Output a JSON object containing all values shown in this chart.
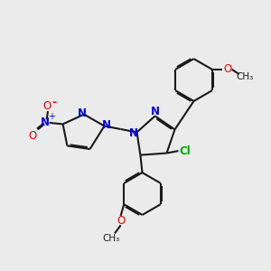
{
  "bg_color": "#ebebeb",
  "bond_color": "#1a1a1a",
  "N_color": "#0000ee",
  "O_color": "#ee0000",
  "Cl_color": "#00aa00",
  "bond_width": 1.5,
  "figsize": [
    3.0,
    3.0
  ],
  "dpi": 100,
  "xlim": [
    0,
    10
  ],
  "ylim": [
    0,
    10
  ]
}
